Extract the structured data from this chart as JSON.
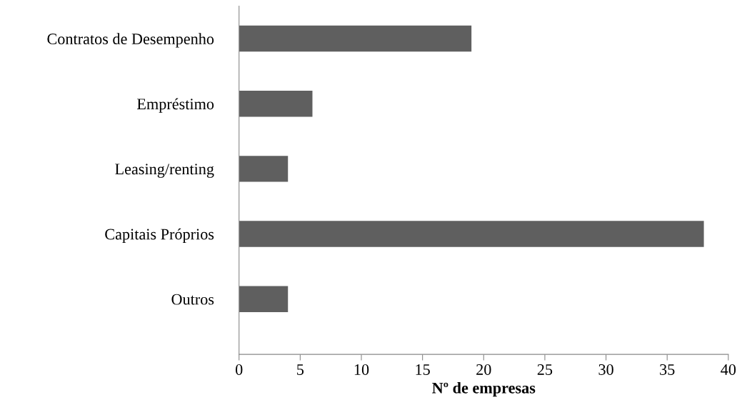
{
  "chart_data": {
    "type": "bar",
    "orientation": "horizontal",
    "xlabel": "Nº de empresas",
    "categories": [
      "Contratos de Desempenho",
      "Empréstimo",
      "Leasing/renting",
      "Capitais Próprios",
      "Outros"
    ],
    "values": [
      19,
      6,
      4,
      38,
      4
    ],
    "color": "#5f5f5f",
    "xlim": [
      0,
      40
    ],
    "xticks": [
      0,
      5,
      10,
      15,
      20,
      25,
      30,
      35,
      40
    ],
    "grid": false,
    "legend": false
  }
}
